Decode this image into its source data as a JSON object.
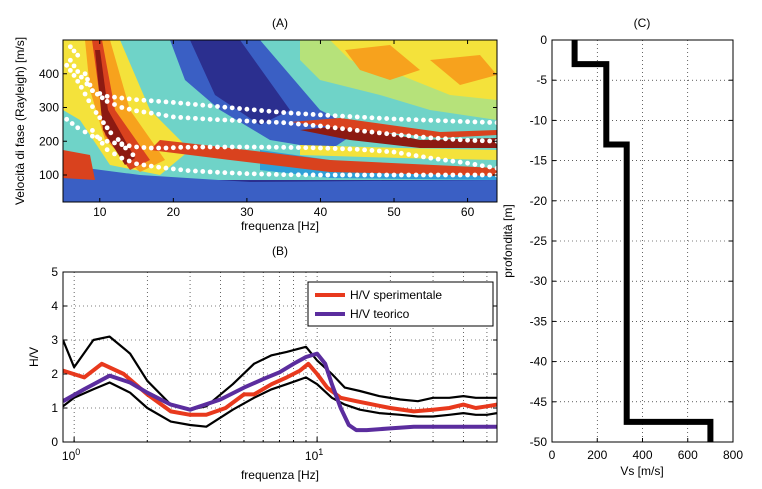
{
  "chart_data": [
    {
      "id": "A",
      "type": "heatmap",
      "title": "(A)",
      "xlabel": "frequenza [Hz]",
      "ylabel": "Velocità di fase (Rayleigh) [m/s]",
      "xlim": [
        5,
        64
      ],
      "ylim": [
        20,
        500
      ],
      "xticks": [
        10,
        20,
        30,
        40,
        50,
        60
      ],
      "yticks": [
        100,
        200,
        300,
        400
      ],
      "colormap": [
        "#2b2f8f",
        "#3a5fc4",
        "#2f9fd8",
        "#6fd3c8",
        "#b6e27a",
        "#f4e23b",
        "#f7a21d",
        "#d9421e",
        "#8c1a12"
      ],
      "grid": false,
      "modal_curves": [
        {
          "x": [
            9,
            11,
            13,
            15,
            18,
            22,
            26,
            30,
            35,
            40,
            45,
            50,
            55,
            60,
            64
          ],
          "y": [
            232,
            175,
            150,
            133,
            123,
            113,
            108,
            104,
            101,
            100,
            100,
            100,
            100,
            100,
            100
          ]
        },
        {
          "x": [
            5.5,
            7,
            9,
            11,
            13,
            15,
            17,
            19,
            21,
            25,
            30,
            35,
            40,
            45,
            50,
            55,
            60,
            64
          ],
          "y": [
            265,
            240,
            215,
            200,
            190,
            183,
            180,
            180,
            182,
            183,
            183,
            182,
            180,
            176,
            168,
            150,
            135,
            120
          ]
        },
        {
          "x": [
            6,
            7.5,
            9,
            11,
            13,
            15,
            18,
            20,
            25,
            30,
            35,
            40,
            45,
            50,
            55,
            60,
            64
          ],
          "y": [
            440,
            390,
            350,
            318,
            300,
            290,
            280,
            272,
            265,
            260,
            255,
            245,
            232,
            220,
            210,
            203,
            200
          ]
        },
        {
          "x": [
            8,
            9,
            11,
            15,
            20,
            25,
            30,
            35,
            40,
            45,
            50,
            55,
            60,
            64
          ],
          "y": [
            400,
            350,
            333,
            323,
            315,
            305,
            295,
            285,
            278,
            272,
            266,
            262,
            258,
            255
          ]
        },
        {
          "x": [
            5.5,
            6.5,
            7.5,
            8.5,
            9.5,
            10.5,
            11.5,
            12.5,
            13.5,
            14.5
          ],
          "y": [
            425,
            395,
            360,
            320,
            285,
            255,
            225,
            205,
            180,
            160
          ]
        },
        {
          "x": [
            6,
            7
          ],
          "y": [
            480,
            455
          ]
        }
      ]
    },
    {
      "id": "B",
      "type": "line",
      "title": "(B)",
      "xlabel": "frequenza [Hz]",
      "ylabel": "H/V",
      "xscale": "log",
      "xlim": [
        0.9,
        55
      ],
      "ylim": [
        0,
        5
      ],
      "xticks": [
        1,
        10
      ],
      "xtick_labels": [
        "10^0",
        "10^1"
      ],
      "yticks": [
        0,
        1,
        2,
        3,
        4,
        5
      ],
      "grid": true,
      "legend_position": "top-right",
      "series": [
        {
          "name": "H/V sperimentale",
          "color": "#e8391d",
          "x": [
            0.9,
            1.1,
            1.3,
            1.6,
            2.0,
            2.5,
            3.0,
            3.5,
            4.2,
            5.0,
            5.5,
            6.5,
            7.5,
            8.5,
            9.2,
            10.0,
            11.0,
            12.5,
            14.5,
            17,
            20,
            25,
            30,
            35,
            40,
            45,
            50,
            55
          ],
          "y": [
            2.1,
            1.9,
            2.3,
            2.0,
            1.4,
            0.9,
            0.8,
            0.8,
            1.0,
            1.4,
            1.4,
            1.7,
            1.9,
            2.1,
            2.3,
            2.0,
            1.6,
            1.3,
            1.2,
            1.1,
            1.0,
            0.9,
            0.95,
            1.0,
            1.1,
            1.0,
            1.05,
            1.1
          ]
        },
        {
          "name": "H/V teorico",
          "color": "#5b2d9e",
          "x": [
            0.9,
            1.1,
            1.4,
            1.7,
            2.0,
            2.5,
            3.0,
            4.0,
            5.0,
            6.0,
            7.0,
            8.0,
            9.0,
            10.0,
            10.8,
            11.5,
            12.5,
            13.5,
            14.5,
            16,
            20,
            25,
            30,
            40,
            55
          ],
          "y": [
            1.2,
            1.55,
            1.95,
            1.75,
            1.45,
            1.1,
            0.95,
            1.25,
            1.6,
            1.85,
            2.05,
            2.3,
            2.5,
            2.6,
            2.3,
            1.7,
            1.0,
            0.5,
            0.35,
            0.35,
            0.4,
            0.45,
            0.45,
            0.45,
            0.45
          ]
        },
        {
          "color": "#000000",
          "x": [
            0.9,
            1.0,
            1.2,
            1.4,
            1.7,
            2.0,
            2.5,
            3.0,
            3.5,
            4.5,
            5.5,
            6.5,
            7.5,
            9.0,
            10.0,
            11.5,
            13,
            15,
            18,
            22,
            26,
            30,
            35,
            40,
            45,
            50,
            55
          ],
          "y": [
            3.0,
            2.2,
            3.0,
            3.1,
            2.6,
            1.8,
            1.1,
            0.95,
            1.05,
            1.7,
            2.3,
            2.55,
            2.65,
            2.8,
            2.4,
            2.0,
            1.6,
            1.5,
            1.35,
            1.25,
            1.2,
            1.3,
            1.3,
            1.35,
            1.3,
            1.3,
            1.3
          ]
        },
        {
          "color": "#000000",
          "x": [
            0.9,
            1.0,
            1.2,
            1.4,
            1.7,
            2.0,
            2.5,
            3.0,
            3.5,
            4.5,
            5.5,
            6.5,
            7.5,
            9.0,
            10.0,
            11.5,
            13,
            15,
            18,
            22,
            26,
            30,
            35,
            40,
            45,
            50,
            55
          ],
          "y": [
            1.05,
            1.3,
            1.55,
            1.75,
            1.45,
            1.0,
            0.6,
            0.5,
            0.45,
            0.95,
            1.3,
            1.55,
            1.7,
            1.9,
            1.7,
            1.3,
            1.1,
            0.95,
            0.85,
            0.8,
            0.75,
            0.75,
            0.8,
            0.85,
            0.8,
            0.8,
            0.85
          ]
        }
      ]
    },
    {
      "id": "C",
      "type": "line",
      "title": "(C)",
      "xlabel": "Vs [m/s]",
      "ylabel": "profondità [m]",
      "xlim": [
        0,
        800
      ],
      "ylim": [
        -50,
        0
      ],
      "xticks": [
        0,
        200,
        400,
        600,
        800
      ],
      "yticks": [
        0,
        -5,
        -10,
        -15,
        -20,
        -25,
        -30,
        -35,
        -40,
        -45,
        -50
      ],
      "grid": true,
      "series": [
        {
          "color": "#000000",
          "x": [
            100,
            100,
            240,
            240,
            330,
            330,
            700,
            700
          ],
          "y": [
            0,
            -3,
            -3,
            -13,
            -13,
            -47.5,
            -47.5,
            -50
          ]
        }
      ]
    }
  ]
}
